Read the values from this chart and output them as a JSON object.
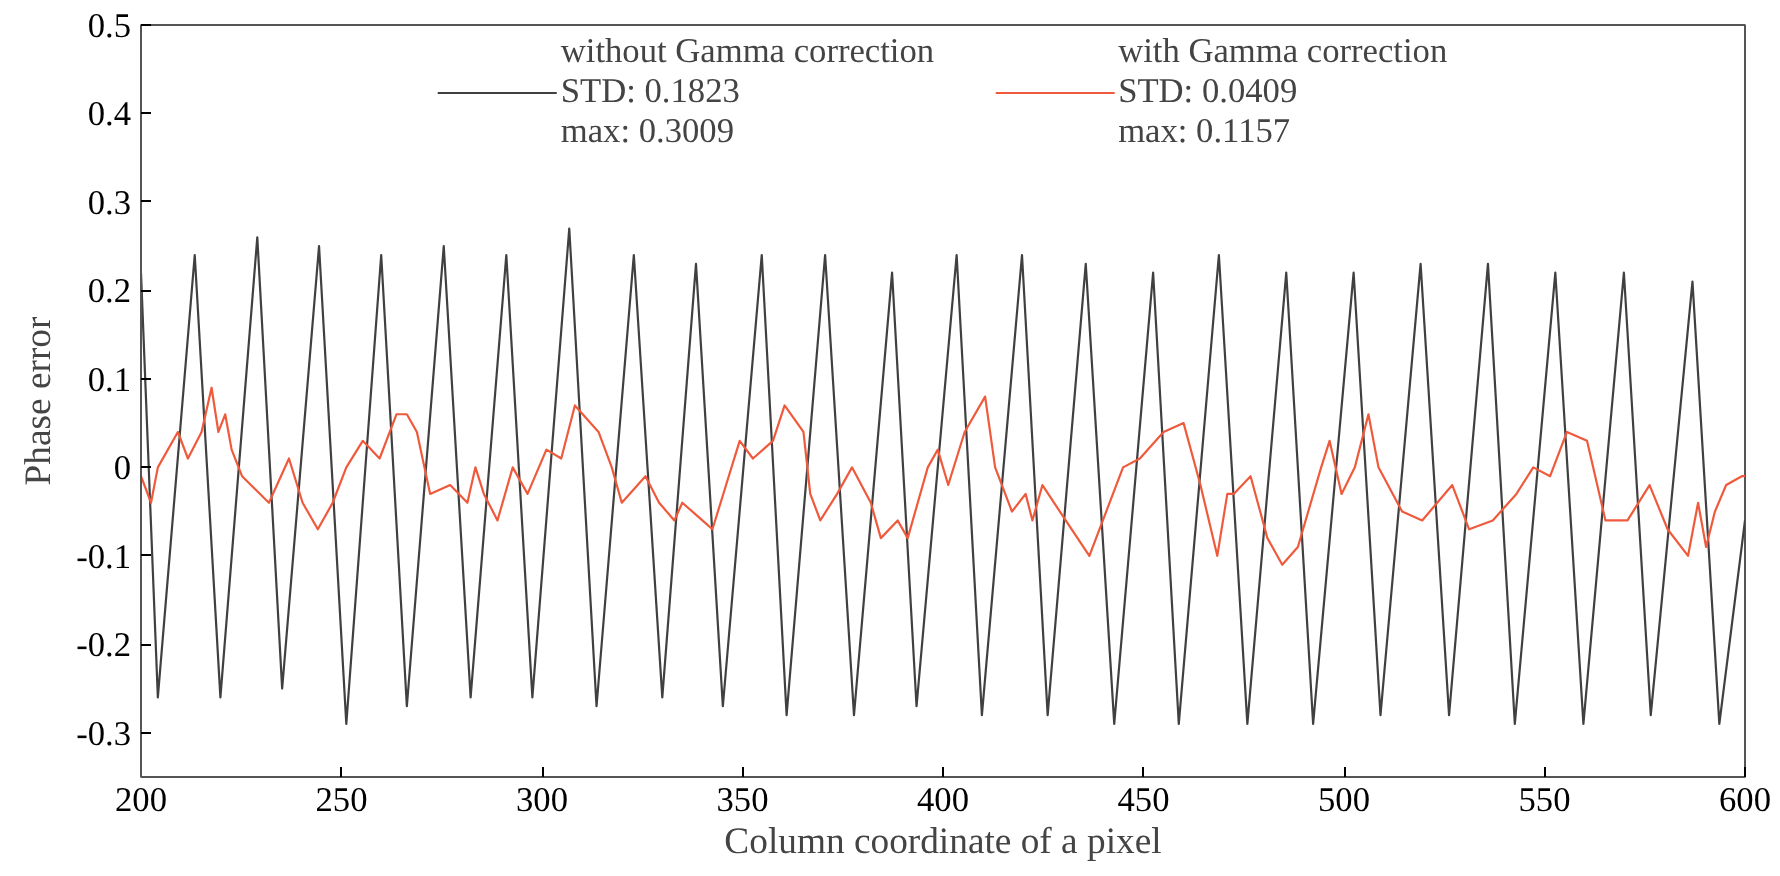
{
  "chart_data": {
    "type": "line",
    "xlabel": "Column coordinate of a pixel",
    "ylabel": "Phase error",
    "xlim": [
      200,
      600
    ],
    "ylim": [
      -0.35,
      0.5
    ],
    "xticks": [
      200,
      250,
      300,
      350,
      400,
      450,
      500,
      550,
      600
    ],
    "yticks": [
      -0.3,
      -0.2,
      -0.1,
      0,
      0.1,
      0.2,
      0.3,
      0.4,
      0.5
    ],
    "grid": false,
    "legend": "top",
    "marker": "none",
    "line_style": "solid",
    "series": [
      {
        "name": "without Gamma correction\nSTD: 0.1823\nmax: 0.3009",
        "color": "#404040",
        "x": [
          200,
          204.2,
          213.4,
          219.8,
          229.0,
          235.2,
          244.4,
          251.2,
          259.9,
          266.3,
          275.5,
          282.2,
          291.1,
          297.6,
          306.8,
          313.6,
          322.9,
          330.0,
          338.4,
          345.1,
          354.8,
          361.0,
          370.6,
          377.8,
          387.3,
          393.4,
          403.4,
          409.7,
          419.7,
          426.1,
          435.6,
          442.7,
          452.4,
          458.8,
          468.8,
          475.9,
          485.6,
          492.3,
          502.4,
          509.1,
          519.1,
          526.2,
          535.9,
          542.6,
          552.7,
          559.7,
          569.8,
          576.5,
          586.9,
          593.6,
          600
        ],
        "values": [
          0.22,
          -0.26,
          0.24,
          -0.26,
          0.26,
          -0.25,
          0.25,
          -0.29,
          0.24,
          -0.27,
          0.25,
          -0.26,
          0.24,
          -0.26,
          0.27,
          -0.27,
          0.24,
          -0.26,
          0.23,
          -0.27,
          0.24,
          -0.28,
          0.24,
          -0.28,
          0.22,
          -0.27,
          0.24,
          -0.28,
          0.24,
          -0.28,
          0.23,
          -0.29,
          0.22,
          -0.29,
          0.24,
          -0.29,
          0.22,
          -0.29,
          0.22,
          -0.28,
          0.23,
          -0.28,
          0.23,
          -0.29,
          0.22,
          -0.29,
          0.22,
          -0.28,
          0.21,
          -0.29,
          -0.06
        ]
      },
      {
        "name": "with Gamma correction\nSTD: 0.0409\nmax: 0.1157",
        "color": "#f05a3c",
        "x": [
          200,
          202.5,
          204.2,
          209.2,
          211.7,
          215.1,
          217.6,
          219.3,
          221.0,
          222.6,
          225.2,
          231.9,
          236.9,
          240.3,
          244.1,
          247.8,
          251.2,
          255.3,
          259.5,
          263.7,
          266.3,
          268.8,
          272.1,
          277.1,
          281.4,
          283.4,
          285.5,
          288.9,
          292.7,
          296.4,
          301.1,
          304.8,
          308.2,
          314.1,
          317.4,
          319.9,
          325.8,
          329.2,
          333.0,
          335.0,
          340.0,
          342.5,
          345.9,
          349.3,
          352.6,
          357.6,
          360.5,
          365.2,
          366.9,
          369.4,
          373.6,
          377.3,
          382.0,
          384.5,
          388.7,
          391.2,
          396.2,
          398.7,
          401.3,
          405.4,
          410.5,
          413.0,
          417.2,
          420.6,
          422.3,
          424.8,
          430.6,
          436.5,
          440.7,
          444.9,
          449.1,
          455.0,
          460.0,
          464.2,
          468.4,
          470.9,
          472.5,
          476.7,
          480.9,
          484.6,
          488.5,
          494.3,
          496.4,
          499.4,
          502.7,
          506.1,
          508.6,
          514.5,
          519.5,
          527.0,
          531.2,
          537.1,
          543.0,
          547.2,
          551.4,
          555.6,
          560.6,
          565.2,
          570.7,
          576.2,
          580.7,
          585.8,
          588.3,
          590.3,
          592.5,
          595.3,
          599.2,
          600
        ],
        "values": [
          -0.01,
          -0.04,
          0.0,
          0.04,
          0.01,
          0.04,
          0.09,
          0.04,
          0.06,
          0.02,
          -0.01,
          -0.04,
          0.01,
          -0.04,
          -0.07,
          -0.04,
          0.0,
          0.03,
          0.01,
          0.06,
          0.06,
          0.04,
          -0.03,
          -0.02,
          -0.04,
          0.0,
          -0.03,
          -0.06,
          0.0,
          -0.03,
          0.02,
          0.01,
          0.07,
          0.04,
          0.0,
          -0.04,
          -0.01,
          -0.04,
          -0.06,
          -0.04,
          -0.06,
          -0.07,
          -0.02,
          0.03,
          0.01,
          0.03,
          0.07,
          0.04,
          -0.03,
          -0.06,
          -0.03,
          0.0,
          -0.04,
          -0.08,
          -0.06,
          -0.08,
          0.0,
          0.02,
          -0.02,
          0.04,
          0.08,
          0.0,
          -0.05,
          -0.03,
          -0.06,
          -0.02,
          -0.06,
          -0.1,
          -0.05,
          0.0,
          0.01,
          0.04,
          0.05,
          -0.02,
          -0.1,
          -0.03,
          -0.03,
          -0.01,
          -0.08,
          -0.11,
          -0.09,
          0.0,
          0.03,
          -0.03,
          0.0,
          0.06,
          0.0,
          -0.05,
          -0.06,
          -0.02,
          -0.07,
          -0.06,
          -0.03,
          0.0,
          -0.01,
          0.04,
          0.03,
          -0.06,
          -0.06,
          -0.02,
          -0.07,
          -0.1,
          -0.04,
          -0.09,
          -0.05,
          -0.02,
          -0.01,
          -0.01
        ]
      }
    ]
  }
}
